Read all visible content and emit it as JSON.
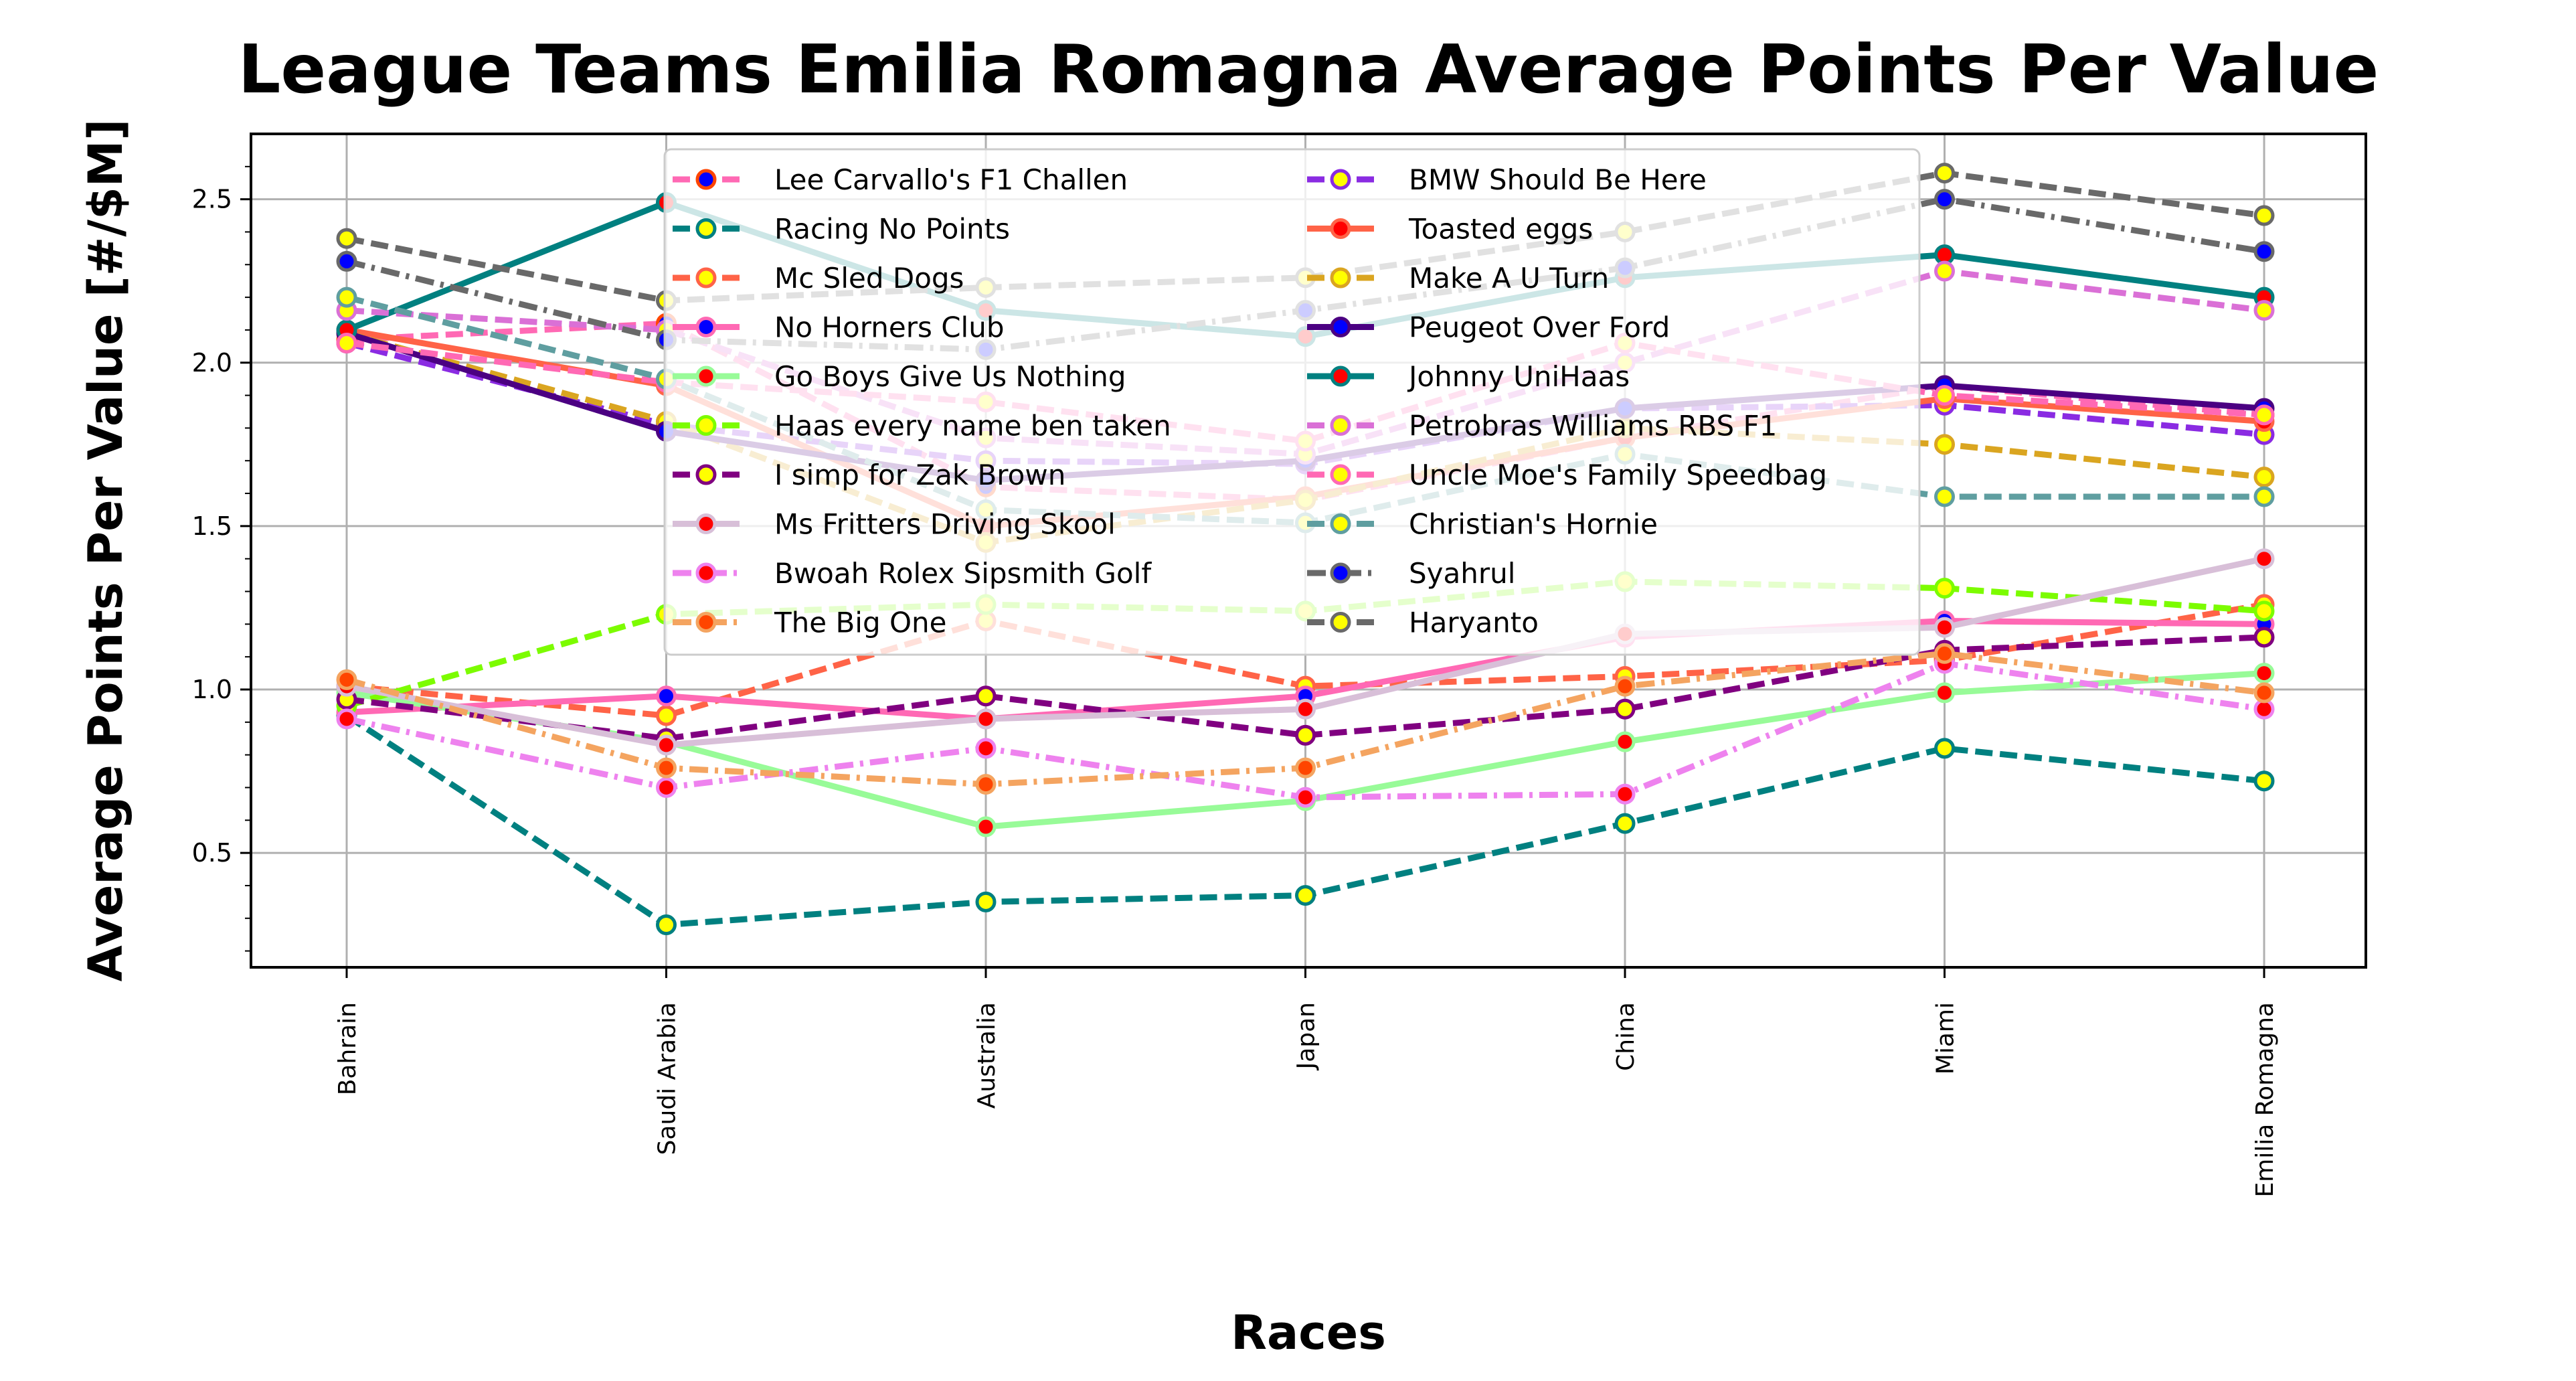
{
  "chart_data": {
    "type": "line",
    "title": "League Teams Emilia Romagna Average Points Per Value",
    "xlabel": "Races",
    "ylabel": "Average Points Per Value [#/$M]",
    "categories": [
      "Bahrain",
      "Saudi Arabia",
      "Australia",
      "Japan",
      "China",
      "Miami",
      "Emilia Romagna"
    ],
    "ylim": [
      0.15,
      2.7
    ],
    "yticks": [
      "0.5",
      "1.0",
      "1.5",
      "2.0",
      "2.5"
    ],
    "grid": true,
    "legend_position": "top-center",
    "series": [
      {
        "name": "Lee Carvallo's F1 Challen",
        "color": "#ff69b4",
        "dash": "dashed",
        "marker_face": "#0000ff",
        "marker_edge": "#ff4500",
        "values": [
          2.07,
          2.12,
          1.62,
          1.58,
          1.77,
          1.93,
          1.84
        ]
      },
      {
        "name": "Racing No Points",
        "color": "#008080",
        "dash": "dashed",
        "marker_face": "#ffff00",
        "marker_edge": "#008080",
        "values": [
          0.92,
          0.28,
          0.35,
          0.37,
          0.59,
          0.82,
          0.72
        ]
      },
      {
        "name": "Mc Sled Dogs",
        "color": "#ff6347",
        "dash": "dashed",
        "marker_face": "#ffff00",
        "marker_edge": "#ff6347",
        "values": [
          1.01,
          0.92,
          1.21,
          1.01,
          1.04,
          1.09,
          1.26
        ]
      },
      {
        "name": "No Horners Club",
        "color": "#ff69b4",
        "dash": "solid",
        "marker_face": "#0000ff",
        "marker_edge": "#ff69b4",
        "values": [
          0.93,
          0.98,
          0.91,
          0.98,
          1.16,
          1.21,
          1.2
        ]
      },
      {
        "name": "Go Boys Give Us Nothing",
        "color": "#98fb98",
        "dash": "solid",
        "marker_face": "#ff0000",
        "marker_edge": "#98fb98",
        "values": [
          0.99,
          0.84,
          0.58,
          0.66,
          0.84,
          0.99,
          1.05
        ]
      },
      {
        "name": "Haas every name ben taken",
        "color": "#7cfc00",
        "dash": "dashed",
        "marker_face": "#ffff00",
        "marker_edge": "#7cfc00",
        "values": [
          0.95,
          1.23,
          1.26,
          1.24,
          1.33,
          1.31,
          1.24
        ]
      },
      {
        "name": "I simp for Zak Brown",
        "color": "#800080",
        "dash": "dashed",
        "marker_face": "#ffff00",
        "marker_edge": "#800080",
        "values": [
          0.97,
          0.85,
          0.98,
          0.86,
          0.94,
          1.12,
          1.16
        ]
      },
      {
        "name": "Ms Fritters Driving Skool",
        "color": "#d8bfd8",
        "dash": "solid",
        "marker_face": "#ff0000",
        "marker_edge": "#d8bfd8",
        "values": [
          1.01,
          0.83,
          0.91,
          0.94,
          1.17,
          1.19,
          1.4
        ]
      },
      {
        "name": "Bwoah Rolex Sipsmith Golf",
        "color": "#ee82ee",
        "dash": "dashdot",
        "marker_face": "#ff0000",
        "marker_edge": "#ee82ee",
        "values": [
          0.91,
          0.7,
          0.82,
          0.67,
          0.68,
          1.08,
          0.94
        ]
      },
      {
        "name": "The Big One",
        "color": "#f4a460",
        "dash": "dashdot",
        "marker_face": "#ff4500",
        "marker_edge": "#f4a460",
        "values": [
          1.03,
          0.76,
          0.71,
          0.76,
          1.01,
          1.11,
          0.99
        ]
      },
      {
        "name": "BMW Should Be Here",
        "color": "#8a2be2",
        "dash": "dashed",
        "marker_face": "#ffff00",
        "marker_edge": "#8a2be2",
        "values": [
          2.06,
          1.81,
          1.7,
          1.69,
          1.86,
          1.87,
          1.78
        ]
      },
      {
        "name": "Toasted eggs",
        "color": "#ff6347",
        "dash": "solid",
        "marker_face": "#ff0000",
        "marker_edge": "#ff6347",
        "values": [
          2.1,
          1.93,
          1.5,
          1.59,
          1.77,
          1.89,
          1.82
        ]
      },
      {
        "name": "Make A U Turn",
        "color": "#daa520",
        "dash": "dashed",
        "marker_face": "#ffff00",
        "marker_edge": "#daa520",
        "values": [
          2.09,
          1.82,
          1.45,
          1.58,
          1.8,
          1.75,
          1.65
        ]
      },
      {
        "name": "Peugeot Over Ford",
        "color": "#4b0082",
        "dash": "solid",
        "marker_face": "#0000ff",
        "marker_edge": "#4b0082",
        "values": [
          2.09,
          1.79,
          1.64,
          1.7,
          1.86,
          1.93,
          1.86
        ]
      },
      {
        "name": "Johnny UniHaas",
        "color": "#008080",
        "dash": "solid",
        "marker_face": "#ff0000",
        "marker_edge": "#008080",
        "values": [
          2.1,
          2.49,
          2.16,
          2.08,
          2.26,
          2.33,
          2.2
        ]
      },
      {
        "name": "Petrobras Williams RBS F1",
        "color": "#da70d6",
        "dash": "dashed",
        "marker_face": "#ffff00",
        "marker_edge": "#da70d6",
        "values": [
          2.16,
          2.1,
          1.77,
          1.72,
          2.0,
          2.28,
          2.16
        ]
      },
      {
        "name": "Uncle Moe's Family Speedbag",
        "color": "#ff69b4",
        "dash": "dashed",
        "marker_face": "#ffff00",
        "marker_edge": "#ff69b4",
        "values": [
          2.06,
          1.94,
          1.88,
          1.76,
          2.06,
          1.9,
          1.84
        ]
      },
      {
        "name": "Christian's Hornie",
        "color": "#5f9ea0",
        "dash": "dashed",
        "marker_face": "#ffff00",
        "marker_edge": "#5f9ea0",
        "values": [
          2.2,
          1.95,
          1.55,
          1.51,
          1.72,
          1.59,
          1.59
        ]
      },
      {
        "name": "Syahrul",
        "color": "#696969",
        "dash": "dashdot",
        "marker_face": "#0000ff",
        "marker_edge": "#696969",
        "values": [
          2.31,
          2.07,
          2.04,
          2.16,
          2.29,
          2.5,
          2.34
        ]
      },
      {
        "name": "Haryanto",
        "color": "#696969",
        "dash": "dashed",
        "marker_face": "#ffff00",
        "marker_edge": "#696969",
        "values": [
          2.38,
          2.19,
          2.23,
          2.26,
          2.4,
          2.58,
          2.45
        ]
      }
    ]
  }
}
